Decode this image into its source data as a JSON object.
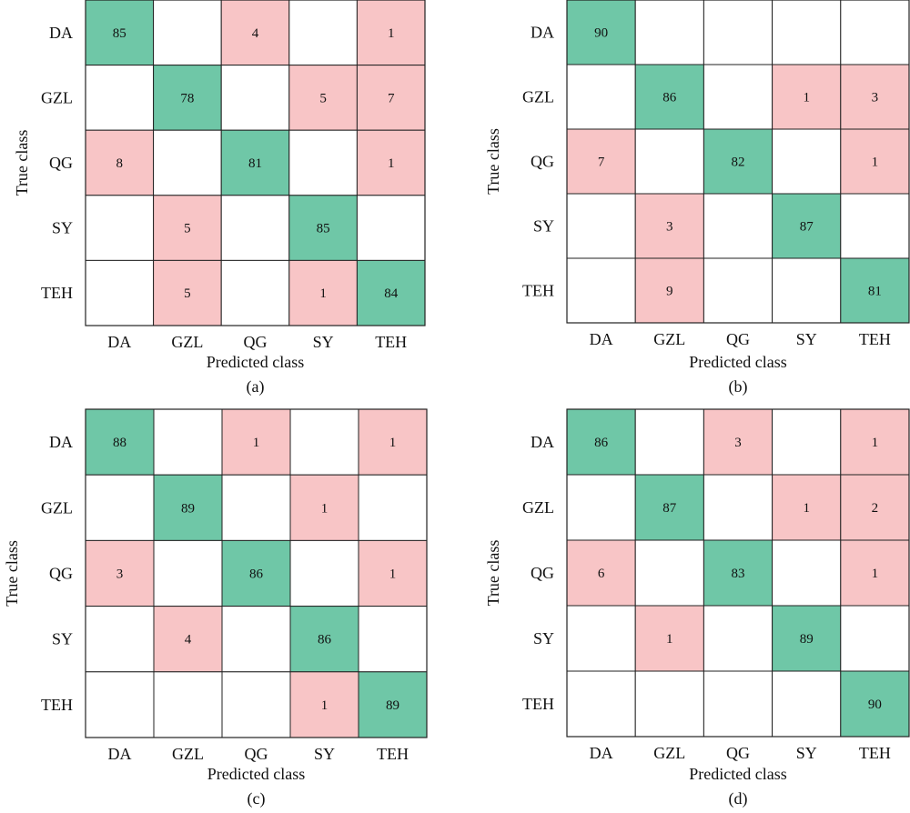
{
  "colors": {
    "diagonal": "#6fc7a7",
    "offdiag": "#f8c5c6",
    "empty": "#ffffff",
    "border": "#222222"
  },
  "chart_data": [
    {
      "type": "heatmap",
      "caption": "(a)",
      "xlabel": "Predicted class",
      "ylabel": "True class",
      "x_categories": [
        "DA",
        "GZL",
        "QG",
        "SY",
        "TEH"
      ],
      "y_categories": [
        "DA",
        "GZL",
        "QG",
        "SY",
        "TEH"
      ],
      "matrix": [
        [
          85,
          null,
          4,
          null,
          1
        ],
        [
          null,
          78,
          null,
          5,
          7
        ],
        [
          8,
          null,
          81,
          null,
          1
        ],
        [
          null,
          5,
          null,
          85,
          null
        ],
        [
          null,
          5,
          null,
          1,
          84
        ]
      ]
    },
    {
      "type": "heatmap",
      "caption": "(b)",
      "xlabel": "Predicted class",
      "ylabel": "True class",
      "x_categories": [
        "DA",
        "GZL",
        "QG",
        "SY",
        "TEH"
      ],
      "y_categories": [
        "DA",
        "GZL",
        "QG",
        "SY",
        "TEH"
      ],
      "matrix": [
        [
          90,
          null,
          null,
          null,
          null
        ],
        [
          null,
          86,
          null,
          1,
          3
        ],
        [
          7,
          null,
          82,
          null,
          1
        ],
        [
          null,
          3,
          null,
          87,
          null
        ],
        [
          null,
          9,
          null,
          null,
          81
        ]
      ]
    },
    {
      "type": "heatmap",
      "caption": "(c)",
      "xlabel": "Predicted class",
      "ylabel": "True class",
      "x_categories": [
        "DA",
        "GZL",
        "QG",
        "SY",
        "TEH"
      ],
      "y_categories": [
        "DA",
        "GZL",
        "QG",
        "SY",
        "TEH"
      ],
      "matrix": [
        [
          88,
          null,
          1,
          null,
          1
        ],
        [
          null,
          89,
          null,
          1,
          null
        ],
        [
          3,
          null,
          86,
          null,
          1
        ],
        [
          null,
          4,
          null,
          86,
          null
        ],
        [
          null,
          null,
          null,
          1,
          89
        ]
      ]
    },
    {
      "type": "heatmap",
      "caption": "(d)",
      "xlabel": "Predicted class",
      "ylabel": "True class",
      "x_categories": [
        "DA",
        "GZL",
        "QG",
        "SY",
        "TEH"
      ],
      "y_categories": [
        "DA",
        "GZL",
        "QG",
        "SY",
        "TEH"
      ],
      "matrix": [
        [
          86,
          null,
          3,
          null,
          1
        ],
        [
          null,
          87,
          null,
          1,
          2
        ],
        [
          6,
          null,
          83,
          null,
          1
        ],
        [
          null,
          1,
          null,
          89,
          null
        ],
        [
          null,
          null,
          null,
          null,
          90
        ]
      ]
    }
  ]
}
